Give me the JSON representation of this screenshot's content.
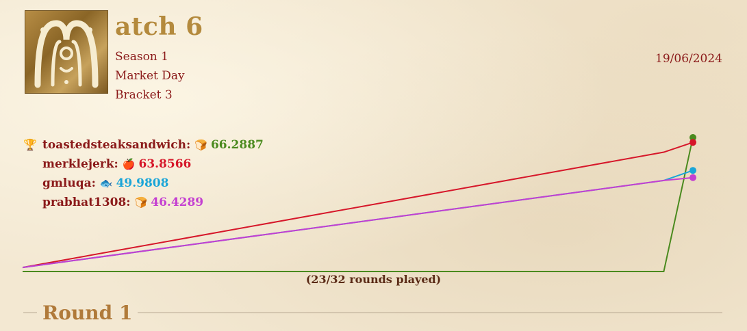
{
  "match": {
    "title": "atch 6",
    "dropcap_letter": "M",
    "season": "Season 1",
    "event": "Market Day",
    "bracket": "Bracket 3",
    "date": "19/06/2024"
  },
  "leaderboard": [
    {
      "name": "toastedsteaksandwich:",
      "emoji": "🍞",
      "score": "66.2887",
      "color": "#4a8a1e",
      "leader_icon": "🏆"
    },
    {
      "name": "merklejerk:",
      "emoji": "🍎",
      "score": "63.8566",
      "color": "#d6172a",
      "leader_icon": ""
    },
    {
      "name": "gmluqa:",
      "emoji": "🐟",
      "score": "49.9808",
      "color": "#1aa5d8",
      "leader_icon": ""
    },
    {
      "name": "prabhat1308:",
      "emoji": "🍞",
      "score": "46.4289",
      "color": "#c43fd1",
      "leader_icon": ""
    }
  ],
  "chart_data": {
    "type": "line",
    "rounds_note": "(23/32 rounds played)",
    "rounds_played": 23,
    "rounds_total": 32,
    "series": [
      {
        "name": "toastedsteaksandwich",
        "color": "#4a8a1e",
        "values": [
          0,
          0,
          66.2887
        ]
      },
      {
        "name": "merklejerk",
        "color": "#d6172a",
        "values": [
          2,
          59,
          63.8566
        ]
      },
      {
        "name": "gmluqa",
        "color": "#1aa5d8",
        "values": [
          2,
          45,
          49.9808
        ]
      },
      {
        "name": "prabhat1308",
        "color": "#c43fd1",
        "values": [
          2,
          45,
          46.4289
        ]
      }
    ],
    "x": [
      0,
      22,
      23
    ],
    "xlim": [
      0,
      23
    ],
    "ylim": [
      0,
      70
    ]
  },
  "round": {
    "title": "Round 1"
  }
}
